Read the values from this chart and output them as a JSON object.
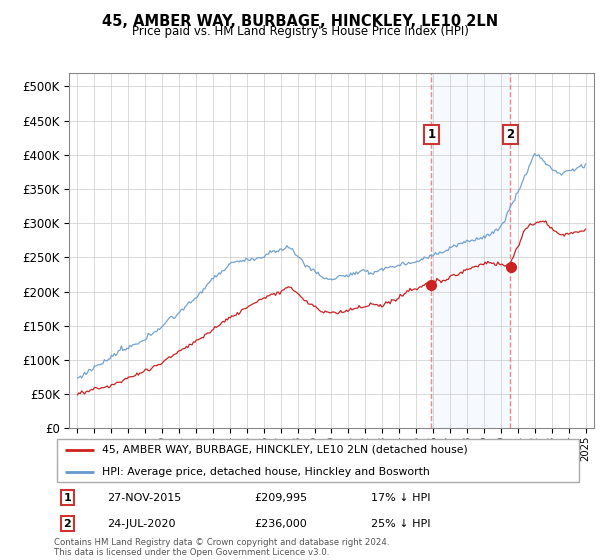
{
  "title": "45, AMBER WAY, BURBAGE, HINCKLEY, LE10 2LN",
  "subtitle": "Price paid vs. HM Land Registry's House Price Index (HPI)",
  "legend_line1": "45, AMBER WAY, BURBAGE, HINCKLEY, LE10 2LN (detached house)",
  "legend_line2": "HPI: Average price, detached house, Hinckley and Bosworth",
  "annotation1_date": "27-NOV-2015",
  "annotation1_price": "£209,995",
  "annotation1_note": "17% ↓ HPI",
  "annotation1_year": 2015.9,
  "annotation2_date": "24-JUL-2020",
  "annotation2_price": "£236,000",
  "annotation2_note": "25% ↓ HPI",
  "annotation2_year": 2020.55,
  "footer": "Contains HM Land Registry data © Crown copyright and database right 2024.\nThis data is licensed under the Open Government Licence v3.0.",
  "red_color": "#cc2222",
  "blue_color": "#6699cc",
  "shading_color": "#ddeeff",
  "dashed_color": "#ee8888",
  "box_color": "#cc3333",
  "sale1_price": 209995,
  "sale2_price": 236000,
  "ylim_min": 0,
  "ylim_max": 520000,
  "xlim_min": 1994.5,
  "xlim_max": 2025.5
}
